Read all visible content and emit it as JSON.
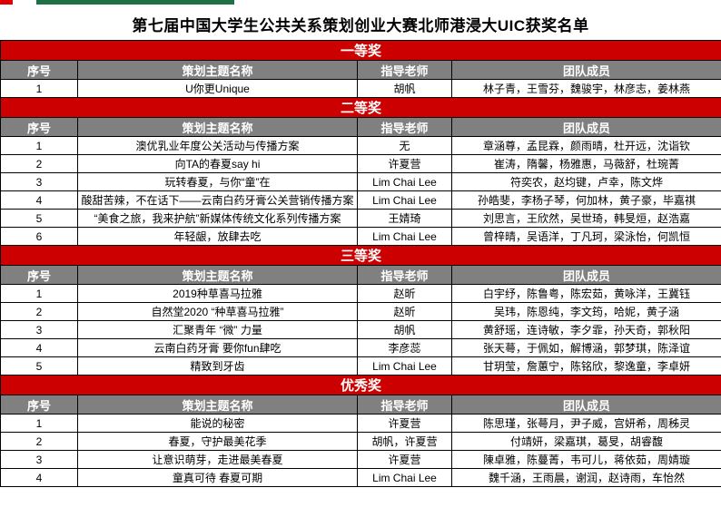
{
  "page": {
    "title": "第七届中国大学生公共关系策划创业大赛北师港浸大UIC获奖名单"
  },
  "decor": {
    "top_red_accent_color": "#e00000",
    "top_green_bar_color": "#1e7145"
  },
  "colors": {
    "section_banner_bg": "#cc0000",
    "section_banner_text": "#ffffff",
    "column_header_bg": "#808080",
    "column_header_text": "#ffffff",
    "cell_text": "#000000",
    "border": "#000000"
  },
  "table": {
    "columns": [
      "序号",
      "策划主题名称",
      "指导老师",
      "团队成员"
    ],
    "sections": [
      {
        "award": "一等奖",
        "rows": [
          [
            "1",
            "U你更Unique",
            "胡帆",
            "林子青，王雪芬，魏骏宇，林彦志，姜林燕"
          ]
        ]
      },
      {
        "award": "二等奖",
        "rows": [
          [
            "1",
            "澳优乳业年度公关活动与传播方案",
            "无",
            "章涵尊，孟昆霖，颜雨晴，杜开远，沈诣钦"
          ],
          [
            "2",
            "向TA的春夏say hi",
            "许夏营",
            "崔涛，隋馨，杨雅惠，马薇舒，杜琬菁"
          ],
          [
            "3",
            "玩转春夏，与你“童”在",
            "Lim Chai Lee",
            "符奕农，赵均键，卢幸，陈文烨"
          ],
          [
            "4",
            "酸甜苦辣，不在话下——云南白药牙膏公关营销传播方案",
            "Lim Chai Lee",
            "孙皓斐，李杨子琴，何加林，黄子豪，毕嘉祺"
          ],
          [
            "5",
            "“美食之旅，我来护航”新媒体传统文化系列传播方案",
            "王婧琦",
            "刘思言，王欣然，吴世琦，韩旻烜，赵浩嘉"
          ],
          [
            "6",
            "年轻龈，放肆去吃",
            "Lim Chai Lee",
            "曾梓晴，吴语洋，丁凡珂，梁泳怡，何凯恒"
          ]
        ]
      },
      {
        "award": "三等奖",
        "rows": [
          [
            "1",
            "2019种草喜马拉雅",
            "赵昕",
            "白宇纾，陈鲁粤，陈宏茹，黄咏洋，王冀钰"
          ],
          [
            "2",
            "自然堂2020 “种草喜马拉雅”",
            "赵昕",
            "吴玮，陈恩纯，李文筠，哈妮，黄子涵"
          ],
          [
            "3",
            "汇聚青年 “微” 力量",
            "胡帆",
            "黄舒瑶，连诗敏，李夕霏，孙天奇，郭秋阳"
          ],
          [
            "4",
            "云南白药牙膏 要你fun肆吃",
            "李彦蕊",
            "张天蕚，于佩如，解博涵，郭梦琪，陈泽谊"
          ],
          [
            "5",
            "精致到牙齿",
            "Lim Chai Lee",
            "甘玥莹，詹蕙宁，陈铭欣，黎逸童，李卓妍"
          ]
        ]
      },
      {
        "award": "优秀奖",
        "rows": [
          [
            "1",
            "能说的秘密",
            "许夏营",
            "陈思瑾，张蕚月，尹子威，宫妍希，周秭灵"
          ],
          [
            "2",
            "春夏，守护最美花季",
            "胡帆，许夏营",
            "付靖妍，梁嘉琪，葛旻，胡睿馥"
          ],
          [
            "3",
            "让意识萌芽，走进最美春夏",
            "许夏营",
            "陳卓雅，陈蔓菁，韦可儿，蒋依茹，周婧璇"
          ],
          [
            "4",
            "童真可待 春夏可期",
            "Lim Chai Lee",
            "魏千涵，王雨晨，谢润，赵诗雨，车怡然"
          ]
        ]
      }
    ]
  }
}
